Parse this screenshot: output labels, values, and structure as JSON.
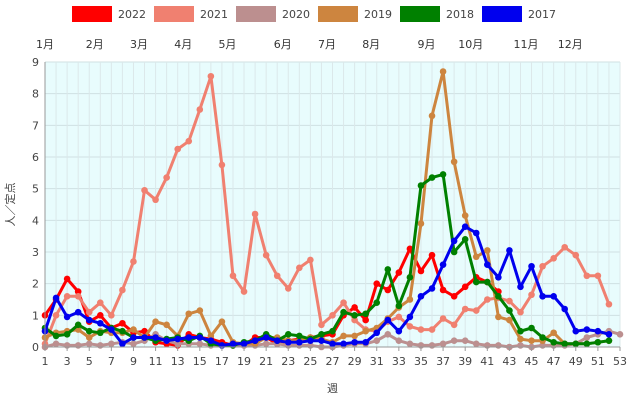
{
  "chart_data": {
    "type": "line",
    "xlabel": "週",
    "ylabel": "人／定点",
    "xlim": [
      1,
      53
    ],
    "ylim": [
      0,
      9
    ],
    "y_ticks": [
      0,
      1,
      2,
      3,
      4,
      5,
      6,
      7,
      8,
      9
    ],
    "x_ticks": [
      1,
      3,
      5,
      7,
      9,
      11,
      13,
      15,
      17,
      19,
      21,
      23,
      25,
      27,
      29,
      31,
      33,
      35,
      37,
      39,
      41,
      43,
      45,
      47,
      49,
      51,
      53
    ],
    "grid": true,
    "legend_position": "top",
    "plot_background": "#e8fcfd",
    "month_labels": [
      {
        "label": "1月",
        "week": 1
      },
      {
        "label": "2月",
        "week": 5.5
      },
      {
        "label": "3月",
        "week": 9.5
      },
      {
        "label": "4月",
        "week": 13.5
      },
      {
        "label": "5月",
        "week": 17.5
      },
      {
        "label": "6月",
        "week": 22.5
      },
      {
        "label": "7月",
        "week": 26.5
      },
      {
        "label": "8月",
        "week": 30.5
      },
      {
        "label": "9月",
        "week": 35.5
      },
      {
        "label": "10月",
        "week": 39.5
      },
      {
        "label": "11月",
        "week": 44.5
      },
      {
        "label": "12月",
        "week": 48.5
      }
    ],
    "series": [
      {
        "name": "2022",
        "color": "#ff0000",
        "values": [
          1.0,
          1.5,
          2.15,
          1.75,
          0.8,
          1.0,
          0.6,
          0.75,
          0.45,
          0.5,
          0.15,
          0.1,
          0.05,
          0.4,
          0.3,
          0.25,
          0.15,
          0.05,
          0.05,
          0.3,
          0.3,
          0.1,
          0.2,
          0.25,
          0.3,
          0.35,
          0.4,
          1.0,
          1.25,
          0.85,
          2.0,
          1.8,
          2.35,
          3.1,
          2.4,
          2.9,
          1.8,
          1.6,
          1.9,
          2.2,
          2.05,
          1.75
        ]
      },
      {
        "name": "2021",
        "color": "#f08070",
        "values": [
          0.1,
          1.0,
          1.6,
          1.6,
          1.1,
          1.4,
          1.0,
          1.8,
          2.7,
          4.95,
          4.65,
          5.35,
          6.25,
          6.5,
          7.5,
          8.55,
          5.75,
          2.25,
          1.75,
          4.2,
          2.9,
          2.25,
          1.85,
          2.5,
          2.75,
          0.7,
          1.0,
          1.4,
          0.85,
          0.55,
          0.5,
          0.8,
          0.95,
          0.65,
          0.55,
          0.55,
          0.9,
          0.7,
          1.2,
          1.15,
          1.5,
          1.55,
          1.45,
          1.1,
          1.65,
          2.55,
          2.8,
          3.15,
          2.9,
          2.25,
          2.25,
          1.35
        ]
      },
      {
        "name": "2020",
        "color": "#bc8f8f",
        "values": [
          0.0,
          0.1,
          0.05,
          0.05,
          0.1,
          0.05,
          0.1,
          0.15,
          0.1,
          0.2,
          0.4,
          0.2,
          0.1,
          0.1,
          0.1,
          0.05,
          0.05,
          0.05,
          0.05,
          0.05,
          0.1,
          0.1,
          0.05,
          0.05,
          0.05,
          0.0,
          0.0,
          0.05,
          0.1,
          0.1,
          0.2,
          0.4,
          0.2,
          0.1,
          0.05,
          0.05,
          0.1,
          0.2,
          0.2,
          0.1,
          0.05,
          0.05,
          0.0,
          0.05,
          0.0,
          0.05,
          0.05,
          0.05,
          0.1,
          0.3,
          0.4,
          0.5,
          0.4
        ]
      },
      {
        "name": "2019",
        "color": "#cd853f",
        "values": [
          0.3,
          0.45,
          0.5,
          0.55,
          0.3,
          0.5,
          0.45,
          0.45,
          0.55,
          0.3,
          0.8,
          0.7,
          0.35,
          1.05,
          1.15,
          0.35,
          0.8,
          0.15,
          0.1,
          0.1,
          0.3,
          0.3,
          0.2,
          0.2,
          0.3,
          0.25,
          0.15,
          0.35,
          0.35,
          0.5,
          0.6,
          0.9,
          1.25,
          1.5,
          3.9,
          7.3,
          8.7,
          5.85,
          4.15,
          2.85,
          3.05,
          0.95,
          0.85,
          0.25,
          0.2,
          0.2,
          0.45,
          0.1,
          0.1,
          0.1,
          0.15,
          0.2
        ]
      },
      {
        "name": "2018",
        "color": "#008000",
        "values": [
          0.6,
          0.35,
          0.4,
          0.7,
          0.5,
          0.45,
          0.6,
          0.5,
          0.3,
          0.3,
          0.2,
          0.25,
          0.3,
          0.2,
          0.35,
          0.1,
          0.05,
          0.05,
          0.15,
          0.2,
          0.4,
          0.2,
          0.4,
          0.35,
          0.25,
          0.4,
          0.5,
          1.1,
          1.0,
          1.05,
          1.4,
          2.45,
          1.3,
          2.2,
          5.1,
          5.35,
          5.45,
          3.0,
          3.4,
          2.05,
          2.05,
          1.6,
          1.15,
          0.5,
          0.6,
          0.3,
          0.15,
          0.1,
          0.1,
          0.1,
          0.15,
          0.2
        ]
      },
      {
        "name": "2017",
        "color": "#0000ee",
        "values": [
          0.5,
          1.55,
          0.95,
          1.1,
          0.85,
          0.75,
          0.55,
          0.1,
          0.3,
          0.3,
          0.3,
          0.2,
          0.25,
          0.3,
          0.3,
          0.2,
          0.05,
          0.1,
          0.1,
          0.2,
          0.3,
          0.2,
          0.15,
          0.15,
          0.2,
          0.2,
          0.1,
          0.1,
          0.15,
          0.15,
          0.45,
          0.85,
          0.5,
          0.95,
          1.6,
          1.85,
          2.6,
          3.35,
          3.8,
          3.6,
          2.6,
          2.2,
          3.05,
          1.9,
          2.55,
          1.6,
          1.6,
          1.2,
          0.5,
          0.55,
          0.5,
          0.4
        ]
      }
    ]
  }
}
